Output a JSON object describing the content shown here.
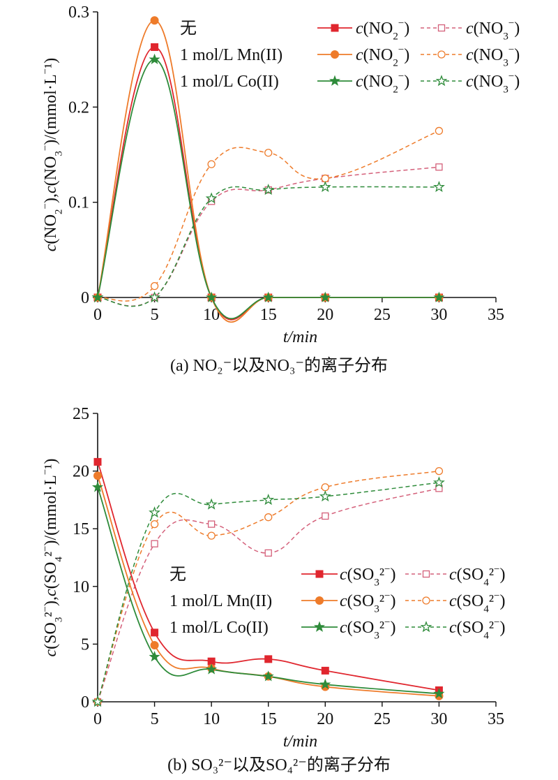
{
  "chart_data": [
    {
      "type": "line",
      "panel": "a",
      "caption": "(a) NO₂⁻以及NO₃⁻的离子分布",
      "xlabel": "t/min",
      "ylabel": "c(NO₂⁻),c(NO₃⁻)/(mmol·L⁻¹)",
      "xlim": [
        0,
        35
      ],
      "ylim": [
        0,
        0.3
      ],
      "xticks": [
        "0",
        "5",
        "10",
        "15",
        "20",
        "25",
        "30",
        "35"
      ],
      "yticks": [
        "0",
        "0.1",
        "0.2",
        "0.3"
      ],
      "legend_placement": "top-right",
      "legend_groups": [
        "无",
        "1 mol/L Mn(II)",
        "1 mol/L Co(II)"
      ],
      "x": [
        0,
        5,
        10,
        15,
        20,
        30
      ],
      "series": [
        {
          "name": "c(NO₂⁻)",
          "group": "无",
          "color": "#e0262e",
          "marker": "square-filled",
          "dash": false,
          "values": [
            0,
            0.263,
            0,
            0,
            0,
            0
          ]
        },
        {
          "name": "c(NO₃⁻)",
          "group": "无",
          "color": "#d4607a",
          "marker": "square-open",
          "dash": true,
          "values": [
            0,
            0,
            0.101,
            0.113,
            0.125,
            0.137
          ]
        },
        {
          "name": "c(NO₂⁻)",
          "group": "1 mol/L Mn(II)",
          "color": "#ee7b2a",
          "marker": "circle-filled",
          "dash": false,
          "values": [
            0,
            0.291,
            0,
            0,
            0,
            0
          ]
        },
        {
          "name": "c(NO₃⁻)",
          "group": "1 mol/L Mn(II)",
          "color": "#ee7b2a",
          "marker": "circle-open",
          "dash": true,
          "values": [
            0,
            0.012,
            0.14,
            0.152,
            0.125,
            0.175
          ]
        },
        {
          "name": "c(NO₂⁻)",
          "group": "1 mol/L Co(II)",
          "color": "#2e8b3a",
          "marker": "star-filled",
          "dash": false,
          "values": [
            0,
            0.25,
            0,
            0,
            0,
            0
          ]
        },
        {
          "name": "c(NO₃⁻)",
          "group": "1 mol/L Co(II)",
          "color": "#2e8b3a",
          "marker": "star-open",
          "dash": true,
          "values": [
            0,
            0,
            0.104,
            0.113,
            0.116,
            0.116
          ]
        }
      ]
    },
    {
      "type": "line",
      "panel": "b",
      "caption": "(b) SO₃²⁻以及SO₄²⁻的离子分布",
      "xlabel": "t/min",
      "ylabel": "c(SO₃²⁻),c(SO₄²⁻)/(mmol·L⁻¹)",
      "xlim": [
        0,
        35
      ],
      "ylim": [
        0,
        25
      ],
      "xticks": [
        "0",
        "5",
        "10",
        "15",
        "20",
        "25",
        "30",
        "35"
      ],
      "yticks": [
        "0",
        "5",
        "10",
        "15",
        "20",
        "25"
      ],
      "legend_placement": "center-right",
      "legend_groups": [
        "无",
        "1 mol/L Mn(II)",
        "1 mol/L Co(II)"
      ],
      "x": [
        0,
        5,
        10,
        15,
        20,
        30
      ],
      "series": [
        {
          "name": "c(SO₃²⁻)",
          "group": "无",
          "color": "#e0262e",
          "marker": "square-filled",
          "dash": false,
          "values": [
            20.8,
            6.0,
            3.5,
            3.7,
            2.7,
            1.0
          ]
        },
        {
          "name": "c(SO₄²⁻)",
          "group": "无",
          "color": "#d4607a",
          "marker": "square-open",
          "dash": true,
          "values": [
            0,
            13.7,
            15.4,
            12.9,
            16.1,
            18.5
          ]
        },
        {
          "name": "c(SO₃²⁻)",
          "group": "1 mol/L Mn(II)",
          "color": "#ee7b2a",
          "marker": "circle-filled",
          "dash": false,
          "values": [
            19.6,
            4.9,
            2.9,
            2.2,
            1.3,
            0.5
          ]
        },
        {
          "name": "c(SO₄²⁻)",
          "group": "1 mol/L Mn(II)",
          "color": "#ee7b2a",
          "marker": "circle-open",
          "dash": true,
          "values": [
            0,
            15.4,
            14.4,
            16.0,
            18.6,
            20.0
          ]
        },
        {
          "name": "c(SO₃²⁻)",
          "group": "1 mol/L Co(II)",
          "color": "#2e8b3a",
          "marker": "star-filled",
          "dash": false,
          "values": [
            18.6,
            3.9,
            2.8,
            2.2,
            1.5,
            0.7
          ]
        },
        {
          "name": "c(SO₄²⁻)",
          "group": "1 mol/L Co(II)",
          "color": "#2e8b3a",
          "marker": "star-open",
          "dash": true,
          "values": [
            0,
            16.4,
            17.1,
            17.5,
            17.8,
            19.0
          ]
        }
      ]
    }
  ]
}
